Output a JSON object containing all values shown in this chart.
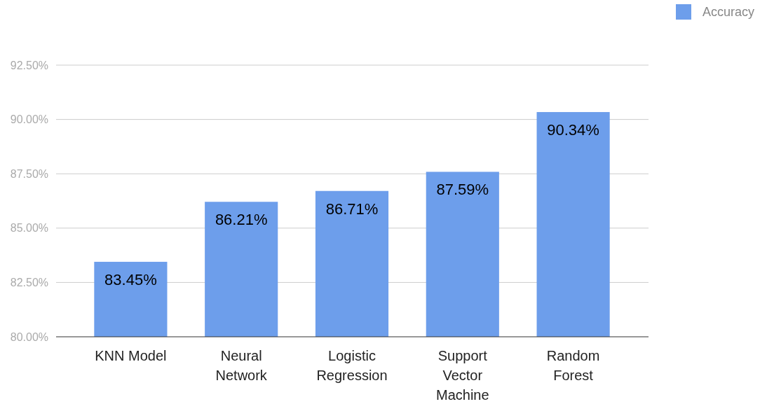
{
  "chart_data": {
    "type": "bar",
    "categories": [
      "KNN Model",
      "Neural Network",
      "Logistic Regression",
      "Support Vector Machine",
      "Random Forest"
    ],
    "series": [
      {
        "name": "Accuracy",
        "color": "#6d9eeb",
        "values": [
          83.45,
          86.21,
          86.71,
          87.59,
          90.34
        ],
        "value_labels": [
          "83.45%",
          "86.21%",
          "86.71%",
          "87.59%",
          "90.34%"
        ]
      }
    ],
    "ylim": [
      80,
      92.5
    ],
    "yticks": [
      {
        "value": 80,
        "label": "80.00%"
      },
      {
        "value": 82.5,
        "label": "82.50%"
      },
      {
        "value": 85,
        "label": "85.00%"
      },
      {
        "value": 87.5,
        "label": "87.50%"
      },
      {
        "value": 90,
        "label": "90.00%"
      },
      {
        "value": 92.5,
        "label": "92.50%"
      }
    ],
    "grid": "y",
    "legend": "top right"
  }
}
